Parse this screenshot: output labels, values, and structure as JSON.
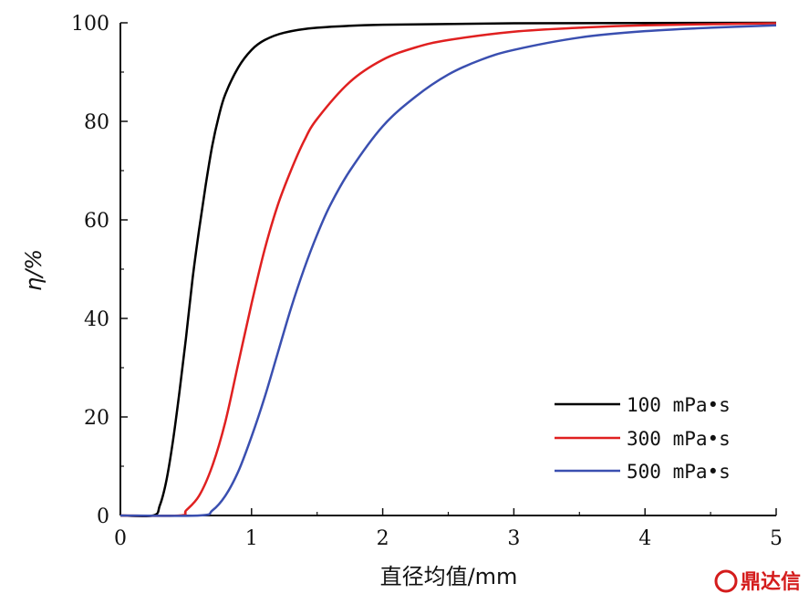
{
  "chart_data": {
    "type": "line",
    "title": "",
    "xlabel": "直径均值/mm",
    "ylabel": "η/%",
    "xlim": [
      0,
      5
    ],
    "ylim": [
      0,
      100
    ],
    "x_ticks": [
      "0",
      "1",
      "2",
      "3",
      "4",
      "5"
    ],
    "y_ticks": [
      "0",
      "20",
      "40",
      "60",
      "80",
      "100"
    ],
    "grid": false,
    "legend_position": "bottom-right",
    "series": [
      {
        "name": "100 mPa·s",
        "color": "#000000",
        "points": [
          [
            0.0,
            0
          ],
          [
            0.25,
            0
          ],
          [
            0.3,
            2
          ],
          [
            0.35,
            7
          ],
          [
            0.4,
            15
          ],
          [
            0.45,
            25
          ],
          [
            0.5,
            36
          ],
          [
            0.55,
            48
          ],
          [
            0.6,
            58
          ],
          [
            0.65,
            67
          ],
          [
            0.7,
            75
          ],
          [
            0.75,
            81
          ],
          [
            0.8,
            85.5
          ],
          [
            0.9,
            91
          ],
          [
            1.0,
            94.5
          ],
          [
            1.1,
            96.5
          ],
          [
            1.25,
            98
          ],
          [
            1.5,
            99
          ],
          [
            2.0,
            99.6
          ],
          [
            3.0,
            99.9
          ],
          [
            5.0,
            100
          ]
        ]
      },
      {
        "name": "300 mPa·s",
        "color": "#e02020",
        "points": [
          [
            0.0,
            0
          ],
          [
            0.45,
            0
          ],
          [
            0.5,
            1
          ],
          [
            0.6,
            4
          ],
          [
            0.7,
            10
          ],
          [
            0.8,
            19
          ],
          [
            0.9,
            31
          ],
          [
            1.0,
            43
          ],
          [
            1.1,
            54
          ],
          [
            1.2,
            63
          ],
          [
            1.3,
            70
          ],
          [
            1.4,
            76
          ],
          [
            1.5,
            80.5
          ],
          [
            1.75,
            88
          ],
          [
            2.0,
            92.5
          ],
          [
            2.25,
            95
          ],
          [
            2.5,
            96.5
          ],
          [
            3.0,
            98.2
          ],
          [
            3.5,
            99
          ],
          [
            4.0,
            99.5
          ],
          [
            5.0,
            99.9
          ]
        ]
      },
      {
        "name": "500 mPa·s",
        "color": "#3a4fb0",
        "points": [
          [
            0.0,
            0
          ],
          [
            0.6,
            0
          ],
          [
            0.7,
            1
          ],
          [
            0.8,
            4
          ],
          [
            0.9,
            9
          ],
          [
            1.0,
            16
          ],
          [
            1.1,
            24
          ],
          [
            1.2,
            33
          ],
          [
            1.3,
            42
          ],
          [
            1.4,
            50
          ],
          [
            1.5,
            57
          ],
          [
            1.6,
            63
          ],
          [
            1.75,
            70
          ],
          [
            2.0,
            79
          ],
          [
            2.25,
            85
          ],
          [
            2.5,
            89.5
          ],
          [
            2.75,
            92.5
          ],
          [
            3.0,
            94.5
          ],
          [
            3.5,
            97
          ],
          [
            4.0,
            98.3
          ],
          [
            4.5,
            99
          ],
          [
            5.0,
            99.5
          ]
        ]
      }
    ]
  },
  "legend": {
    "items": [
      "100 mPa•s",
      "300 mPa•s",
      "500 mPa•s"
    ]
  },
  "watermark": {
    "text": "鼎达信"
  }
}
